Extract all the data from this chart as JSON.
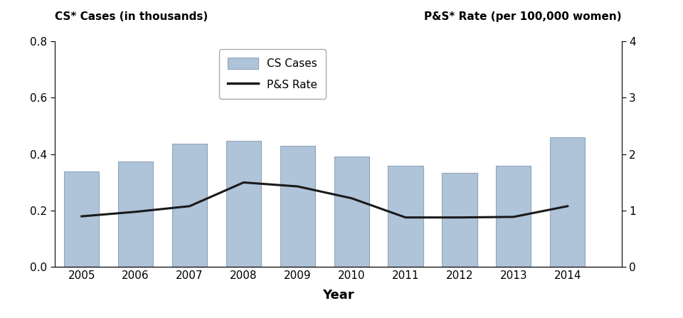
{
  "years": [
    2005,
    2006,
    2007,
    2008,
    2009,
    2010,
    2011,
    2012,
    2013,
    2014
  ],
  "cs_cases": [
    0.338,
    0.375,
    0.438,
    0.448,
    0.43,
    0.392,
    0.358,
    0.335,
    0.358,
    0.46
  ],
  "ps_rate": [
    0.9,
    0.98,
    1.08,
    1.5,
    1.43,
    1.22,
    0.88,
    0.88,
    0.89,
    1.08
  ],
  "bar_color": "#afc3d9",
  "bar_edgecolor": "#8fa4bf",
  "line_color": "#1a1a1a",
  "left_ylabel": "CS* Cases (in thousands)",
  "right_ylabel": "P&S* Rate (per 100,000 women)",
  "xlabel": "Year",
  "left_ylim": [
    0,
    0.8
  ],
  "right_ylim": [
    0,
    4
  ],
  "left_yticks": [
    0.0,
    0.2,
    0.4,
    0.6,
    0.8
  ],
  "right_yticks": [
    0,
    1,
    2,
    3,
    4
  ],
  "legend_cs": "CS Cases",
  "legend_ps": "P&S Rate",
  "figsize": [
    9.6,
    4.47
  ],
  "dpi": 100
}
